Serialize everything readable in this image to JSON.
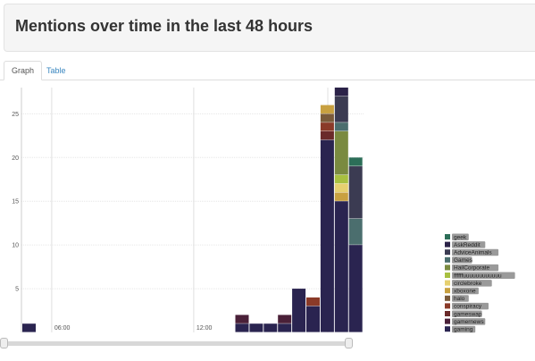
{
  "header": {
    "title": "Mentions over time in the last 48 hours"
  },
  "tabs": [
    {
      "label": "Graph",
      "active": true
    },
    {
      "label": "Table",
      "active": false
    }
  ],
  "chart_data": {
    "type": "bar",
    "stacked": true,
    "y_ticks": [
      5,
      10,
      15,
      20,
      25
    ],
    "ylim": [
      0,
      28
    ],
    "time_labels": [
      "06:00",
      "12:00"
    ],
    "grid": true,
    "legend_position": "right",
    "series_order_bottom_to_top": [
      "gaming",
      "gamernews",
      "gameswap",
      "conspiracy",
      "halo",
      "xboxone",
      "circlebroke",
      "ffffffuuuuuuuuuuuu",
      "HailCorporate",
      "Games",
      "AdviceAnimals",
      "AskReddit",
      "geek"
    ],
    "series": [
      {
        "name": "geek",
        "color": "#2c6e58"
      },
      {
        "name": "AskReddit",
        "color": "#2b2248"
      },
      {
        "name": "AdviceAnimals",
        "color": "#3b3b52"
      },
      {
        "name": "Games",
        "color": "#4b6e6e"
      },
      {
        "name": "HailCorporate",
        "color": "#7a8a40"
      },
      {
        "name": "ffffffuuuuuuuuuuuu",
        "color": "#a8c040"
      },
      {
        "name": "circlebroke",
        "color": "#e6d070"
      },
      {
        "name": "xboxone",
        "color": "#c8a040"
      },
      {
        "name": "halo",
        "color": "#7a5a3a"
      },
      {
        "name": "conspiracy",
        "color": "#8a3a28"
      },
      {
        "name": "gameswap",
        "color": "#6a2a2a"
      },
      {
        "name": "gamernews",
        "color": "#4a2038"
      },
      {
        "name": "gaming",
        "color": "#2a2450"
      }
    ],
    "bars": [
      {
        "slot": 0,
        "segments": [
          {
            "series": "gaming",
            "value": 1
          }
        ]
      },
      {
        "slot": 15,
        "segments": [
          {
            "series": "gaming",
            "value": 1
          },
          {
            "series": "gamernews",
            "value": 1
          }
        ]
      },
      {
        "slot": 16,
        "segments": [
          {
            "series": "gaming",
            "value": 1
          }
        ]
      },
      {
        "slot": 17,
        "segments": [
          {
            "series": "gaming",
            "value": 1
          }
        ]
      },
      {
        "slot": 18,
        "segments": [
          {
            "series": "gaming",
            "value": 1
          },
          {
            "series": "gamernews",
            "value": 1
          }
        ]
      },
      {
        "slot": 19,
        "segments": [
          {
            "series": "gaming",
            "value": 5
          }
        ]
      },
      {
        "slot": 20,
        "segments": [
          {
            "series": "gaming",
            "value": 3
          },
          {
            "series": "conspiracy",
            "value": 1
          }
        ]
      },
      {
        "slot": 21,
        "segments": [
          {
            "series": "gaming",
            "value": 22
          },
          {
            "series": "gameswap",
            "value": 1
          },
          {
            "series": "conspiracy",
            "value": 1
          },
          {
            "series": "halo",
            "value": 1
          },
          {
            "series": "xboxone",
            "value": 1
          }
        ]
      },
      {
        "slot": 22,
        "segments": [
          {
            "series": "gaming",
            "value": 15
          },
          {
            "series": "xboxone",
            "value": 1
          },
          {
            "series": "circlebroke",
            "value": 1
          },
          {
            "series": "ffffffuuuuuuuuuuuu",
            "value": 1
          },
          {
            "series": "HailCorporate",
            "value": 5
          },
          {
            "series": "Games",
            "value": 1
          },
          {
            "series": "AdviceAnimals",
            "value": 3
          },
          {
            "series": "AskReddit",
            "value": 1
          }
        ]
      },
      {
        "slot": 23,
        "segments": [
          {
            "series": "gaming",
            "value": 10
          },
          {
            "series": "Games",
            "value": 3
          },
          {
            "series": "AdviceAnimals",
            "value": 6
          },
          {
            "series": "geek",
            "value": 1
          }
        ]
      }
    ],
    "time_label_slots": [
      1,
      11
    ]
  },
  "range_selector": {
    "start_fraction": 0.0,
    "end_fraction": 1.0
  }
}
